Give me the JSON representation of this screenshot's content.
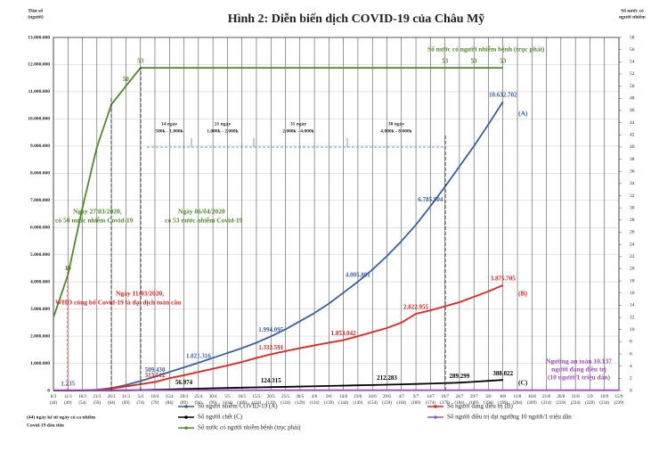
{
  "chart_data": {
    "type": "line",
    "title": "Hình 2: Diễn biến dịch COVID-19 của Châu Mỹ",
    "y_label": [
      "Dân số",
      "(người)"
    ],
    "y2_label": [
      "Số nước có",
      "người nhiễm"
    ],
    "categories": [
      "6/3",
      "11/3",
      "16/3",
      "21/3",
      "26/3",
      "31/3",
      "5/4",
      "10/4",
      "15/4",
      "20/4",
      "25/4",
      "30/4",
      "5/5",
      "10/5",
      "15/5",
      "20/5",
      "25/5",
      "30/5",
      "4/6",
      "9/6",
      "14/6",
      "19/6",
      "24/6",
      "29/6",
      "4/7",
      "9/7",
      "14/7",
      "19/7",
      "24/7",
      "29/7",
      "3/8",
      "8/8",
      "11/8",
      "16/8",
      "21/8",
      "26/8",
      "31/8",
      "5/9",
      "10/9",
      "15/9"
    ],
    "category_days": [
      "(44)",
      "(49)",
      "(54)",
      "(59)",
      "(64)",
      "(69)",
      "(74)",
      "(79)",
      "(84)",
      "(89)",
      "(94)",
      "(99)",
      "(104)",
      "(109)",
      "(114)",
      "(119)",
      "(124)",
      "(129)",
      "(134)",
      "(139)",
      "(144)",
      "(149)",
      "(154)",
      "(159)",
      "(164)",
      "(169)",
      "(174)",
      "(179)",
      "(184)",
      "(189)",
      "(194)",
      "(199)",
      "(204)",
      "(209)",
      "(214)",
      "(219)",
      "(224)",
      "(229)",
      "(234)",
      "(239)"
    ],
    "ylim": [
      0,
      13000000
    ],
    "yticks": [
      0,
      {
        "value": 1000000,
        "label": "1.000.000"
      },
      {
        "value": 2000000,
        "label": "2.000.000"
      },
      {
        "value": 3000000,
        "label": "3.000.000"
      },
      {
        "value": 4000000,
        "label": "4.000.000"
      },
      {
        "value": 5000000,
        "label": "5.000.000"
      },
      {
        "value": 6000000,
        "label": "6.000.000"
      },
      {
        "value": 7000000,
        "label": "7.000.000"
      },
      {
        "value": 8000000,
        "label": "8.000.000"
      },
      {
        "value": 9000000,
        "label": "9.000.000"
      },
      {
        "value": 10000000,
        "label": "10.000.000"
      },
      {
        "value": 11000000,
        "label": "11.000.000"
      },
      {
        "value": 12000000,
        "label": "12.000.000"
      },
      {
        "value": 13000000,
        "label": "13.000.000"
      }
    ],
    "y2lim": [
      0,
      58
    ],
    "y2ticks": [
      0,
      2,
      4,
      6,
      8,
      10,
      12,
      14,
      16,
      18,
      20,
      22,
      24,
      26,
      28,
      30,
      32,
      34,
      36,
      38,
      40,
      42,
      44,
      46,
      48,
      50,
      52,
      54,
      56,
      58
    ],
    "grid": true,
    "series": [
      {
        "name": "Số người nhiễm COVID-19 (A)",
        "color": "#3a5fa5",
        "values": [
          0,
          1235,
          5000,
          30000,
          90000,
          200000,
          350000,
          509430,
          680000,
          850000,
          1021316,
          1200000,
          1380000,
          1560000,
          1760000,
          1994095,
          2250000,
          2550000,
          2850000,
          3200000,
          3600000,
          4005801,
          4450000,
          4950000,
          5500000,
          6100000,
          6785904,
          7500000,
          8250000,
          9000000,
          9800000,
          10632702,
          null,
          null,
          null,
          null,
          null,
          null,
          null,
          null
        ],
        "value_labels": [
          null,
          "1.235",
          null,
          null,
          null,
          null,
          null,
          "509.430",
          null,
          null,
          "1.021.316",
          null,
          null,
          null,
          null,
          "1.994.095",
          null,
          null,
          null,
          null,
          null,
          "4.005.801",
          null,
          null,
          null,
          null,
          "6.785.904",
          null,
          null,
          null,
          null,
          "10.632.702",
          null,
          null,
          null,
          null,
          null,
          null,
          null,
          null
        ]
      },
      {
        "name": "Số người đang điều trị (B)",
        "color": "#e8201c",
        "values": [
          0,
          0,
          3000,
          20000,
          70000,
          150000,
          230000,
          313512,
          450000,
          560000,
          680000,
          800000,
          920000,
          1050000,
          1200000,
          1332591,
          1450000,
          1560000,
          1660000,
          1760000,
          1853042,
          2000000,
          2150000,
          2300000,
          2500000,
          2822955,
          2950000,
          3100000,
          3250000,
          3450000,
          3650000,
          3875705,
          null,
          null,
          null,
          null,
          null,
          null,
          null,
          null
        ],
        "value_labels": [
          null,
          null,
          null,
          null,
          null,
          null,
          null,
          "313.512",
          null,
          null,
          null,
          null,
          null,
          null,
          null,
          "1.332.591",
          null,
          null,
          null,
          null,
          "1.853.042",
          null,
          null,
          null,
          null,
          "2.822.955",
          null,
          null,
          null,
          null,
          null,
          "3.875.705",
          null,
          null,
          null,
          null,
          null,
          null,
          null,
          null
        ]
      },
      {
        "name": "Số người chết (C)",
        "color": "#000000",
        "values": [
          0,
          0,
          0,
          500,
          2000,
          6000,
          15000,
          27000,
          40000,
          56974,
          70000,
          82000,
          93000,
          104000,
          114000,
          124315,
          134000,
          145000,
          156000,
          167000,
          178000,
          190000,
          201000,
          212283,
          225000,
          240000,
          255000,
          270000,
          289299,
          320000,
          355000,
          388022,
          null,
          null,
          null,
          null,
          null,
          null,
          null,
          null
        ],
        "value_labels": [
          null,
          null,
          null,
          null,
          null,
          null,
          null,
          null,
          null,
          "56.974",
          null,
          null,
          null,
          null,
          null,
          "124.315",
          null,
          null,
          null,
          null,
          null,
          null,
          null,
          "212.283",
          null,
          null,
          null,
          null,
          "289.299",
          null,
          null,
          "388.022",
          null,
          null,
          null,
          null,
          null,
          null,
          null,
          null
        ]
      },
      {
        "name": "Số người điều trị đạt ngưỡng 10 người/1 triệu dân",
        "color": "#9b4dca",
        "values": [
          10137,
          10137,
          10137,
          10137,
          10137,
          10137,
          10137,
          10137,
          10137,
          10137,
          10137,
          10137,
          10137,
          10137,
          10137,
          10137,
          10137,
          10137,
          10137,
          10137,
          10137,
          10137,
          10137,
          10137,
          10137,
          10137,
          10137,
          10137,
          10137,
          10137,
          10137,
          10137,
          10137,
          10137,
          10137,
          10137,
          10137,
          10137,
          10137,
          10137
        ]
      },
      {
        "name": "Số nước có người nhiễm bệnh (trục phải)",
        "color": "#4f8a2b",
        "axis": "y2",
        "values": [
          12,
          19,
          30,
          40,
          47,
          50,
          53,
          53,
          53,
          53,
          53,
          53,
          53,
          53,
          53,
          53,
          53,
          53,
          53,
          53,
          53,
          53,
          53,
          53,
          53,
          53,
          53,
          53,
          53,
          53,
          53,
          53,
          null,
          null,
          null,
          null,
          null,
          null,
          null,
          null
        ],
        "value_labels": [
          null,
          "19",
          null,
          null,
          null,
          "50",
          "53",
          null,
          null,
          null,
          null,
          null,
          null,
          null,
          null,
          null,
          null,
          null,
          null,
          null,
          null,
          null,
          null,
          null,
          null,
          null,
          null,
          "53",
          null,
          "53",
          null,
          "53",
          null,
          null,
          null,
          null,
          null,
          null,
          null,
          null
        ]
      }
    ],
    "annotations": [
      "Ngày 27/03/2020,",
      "có 50 nước nhiễm Covid-19",
      "Ngày 06/04/2020",
      "có 53 nước nhiễm Covid-19",
      "Ngày 11/03/2020,",
      "WHO công bố Covid-19 là đại dịch toàn cầu",
      "Số nước có người nhiễm bệnh (trục phải)",
      "14 ngày",
      "500k - 1.000k",
      "21 ngày",
      "1.000k - 2.000k",
      "31 ngày",
      "2.000k - 4.000k",
      "30 ngày",
      "4.000k - 8.000k",
      "(A)",
      "(B)",
      "(C)",
      "Ngưỡng an toàn 10.137",
      "người đang điều trị",
      "(10 người/1 triệu dân)",
      "(44) ngày kể từ ngày có ca nhiễm",
      "Covid-19 đầu tiên"
    ]
  }
}
